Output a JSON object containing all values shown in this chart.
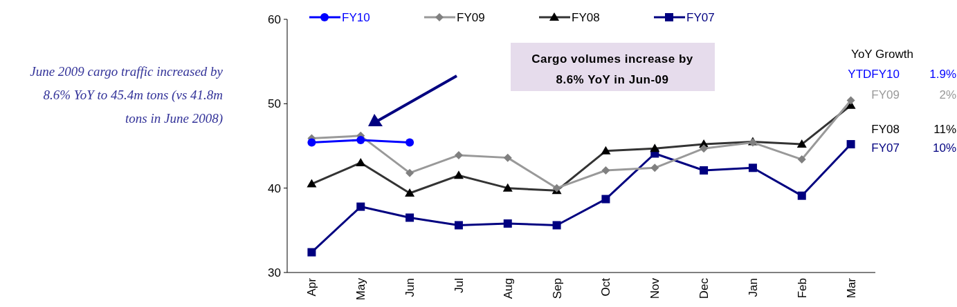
{
  "chart_data": {
    "type": "line",
    "categories": [
      "Apr",
      "May",
      "Jun",
      "Jul",
      "Aug",
      "Sep",
      "Oct",
      "Nov",
      "Dec",
      "Jan",
      "Feb",
      "Mar"
    ],
    "series": [
      {
        "name": "FY10",
        "color": "#0000ff",
        "marker": "circle",
        "values": [
          45.4,
          45.7,
          45.4,
          null,
          null,
          null,
          null,
          null,
          null,
          null,
          null,
          null
        ]
      },
      {
        "name": "FY09",
        "color": "#999999",
        "marker": "diamond",
        "values": [
          45.9,
          46.2,
          41.8,
          43.9,
          43.6,
          40.0,
          42.1,
          42.4,
          44.7,
          45.4,
          43.4,
          50.4
        ]
      },
      {
        "name": "FY08",
        "color": "#333333",
        "marker": "triangle",
        "values": [
          40.5,
          43.0,
          39.4,
          41.5,
          40.0,
          39.7,
          44.4,
          44.7,
          45.2,
          45.5,
          45.2,
          49.8
        ]
      },
      {
        "name": "FY07",
        "color": "#000080",
        "marker": "square",
        "values": [
          32.4,
          37.8,
          36.5,
          35.6,
          35.8,
          35.6,
          38.7,
          44.1,
          42.1,
          42.4,
          39.1,
          45.2
        ]
      }
    ],
    "ylim": [
      30,
      60
    ],
    "yticks": [
      30,
      40,
      50,
      60
    ],
    "legend": "top",
    "grid": false,
    "annotations": [
      "June 2009 cargo traffic increased by 8.6% YoY to 45.4m tons (vs 41.8m tons in June 2008)",
      "Cargo volumes increase by 8.6% YoY in Jun-09",
      "YoY Growth",
      "YTDFY10",
      "1.9%",
      "FY09",
      "2%",
      "FY08",
      "11%",
      "FY07",
      "10%"
    ]
  }
}
